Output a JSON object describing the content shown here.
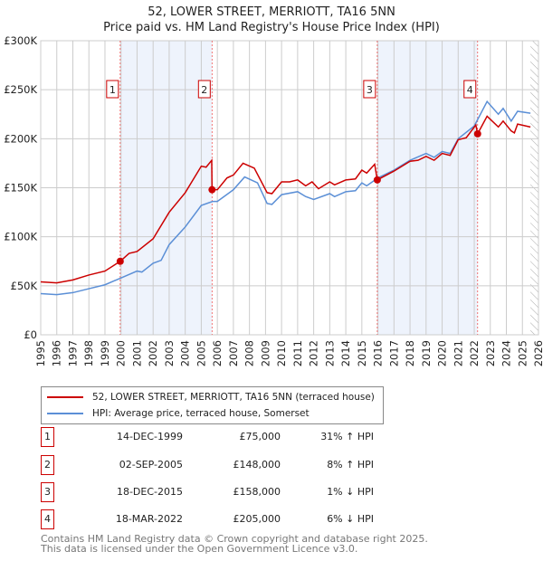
{
  "title": "52, LOWER STREET, MERRIOTT, TA16 5NN",
  "subtitle": "Price paid vs. HM Land Registry's House Price Index (HPI)",
  "chart_data": {
    "type": "line",
    "xlim": [
      1995,
      2026
    ],
    "ylim": [
      0,
      300000
    ],
    "y_ticks": [
      {
        "v": 0,
        "label": "£0"
      },
      {
        "v": 50000,
        "label": "£50K"
      },
      {
        "v": 100000,
        "label": "£100K"
      },
      {
        "v": 150000,
        "label": "£150K"
      },
      {
        "v": 200000,
        "label": "£200K"
      },
      {
        "v": 250000,
        "label": "£250K"
      },
      {
        "v": 300000,
        "label": "£300K"
      }
    ],
    "x_ticks": [
      "1995",
      "1996",
      "1997",
      "1998",
      "1999",
      "2000",
      "2001",
      "2002",
      "2003",
      "2004",
      "2005",
      "2006",
      "2007",
      "2008",
      "2009",
      "2010",
      "2011",
      "2012",
      "2013",
      "2014",
      "2015",
      "2016",
      "2017",
      "2018",
      "2019",
      "2020",
      "2021",
      "2022",
      "2023",
      "2024",
      "2025",
      "2026"
    ],
    "shaded_ranges": [
      [
        1999.95,
        2005.67
      ],
      [
        2015.96,
        2022.21
      ]
    ],
    "hatched_from": 2025.5,
    "series": [
      {
        "name": "52, LOWER STREET, MERRIOTT, TA16 5NN (terraced house)",
        "color": "#cc0000",
        "points": [
          [
            1995,
            54000
          ],
          [
            1996,
            53000
          ],
          [
            1997,
            56000
          ],
          [
            1998,
            61000
          ],
          [
            1999,
            65000
          ],
          [
            1999.95,
            75000
          ],
          [
            2000.5,
            83000
          ],
          [
            2001,
            85000
          ],
          [
            2002,
            98000
          ],
          [
            2003,
            125000
          ],
          [
            2004,
            145000
          ],
          [
            2005,
            172000
          ],
          [
            2005.3,
            171000
          ],
          [
            2005.65,
            178000
          ],
          [
            2005.67,
            148000
          ],
          [
            2006,
            148000
          ],
          [
            2006.6,
            160000
          ],
          [
            2007,
            163000
          ],
          [
            2007.6,
            175000
          ],
          [
            2008.3,
            170000
          ],
          [
            2009.1,
            145000
          ],
          [
            2009.4,
            144000
          ],
          [
            2010,
            156000
          ],
          [
            2010.5,
            156000
          ],
          [
            2011,
            158000
          ],
          [
            2011.5,
            152000
          ],
          [
            2011.9,
            156000
          ],
          [
            2012.3,
            149000
          ],
          [
            2013,
            156000
          ],
          [
            2013.3,
            153000
          ],
          [
            2014,
            158000
          ],
          [
            2014.6,
            159000
          ],
          [
            2015,
            168000
          ],
          [
            2015.3,
            165000
          ],
          [
            2015.8,
            174000
          ],
          [
            2015.96,
            158000
          ],
          [
            2017,
            167000
          ],
          [
            2018,
            177000
          ],
          [
            2018.5,
            178000
          ],
          [
            2019,
            182000
          ],
          [
            2019.5,
            178000
          ],
          [
            2020,
            185000
          ],
          [
            2020.5,
            183000
          ],
          [
            2021,
            199000
          ],
          [
            2021.5,
            201000
          ],
          [
            2022.1,
            214000
          ],
          [
            2022.21,
            205000
          ],
          [
            2022.8,
            223000
          ],
          [
            2023.5,
            212000
          ],
          [
            2023.8,
            218000
          ],
          [
            2024.3,
            208000
          ],
          [
            2024.5,
            206000
          ],
          [
            2024.7,
            215000
          ],
          [
            2025.5,
            212000
          ]
        ]
      },
      {
        "name": "HPI: Average price, terraced house, Somerset",
        "color": "#5b8fd6",
        "points": [
          [
            1995,
            42000
          ],
          [
            1996,
            41000
          ],
          [
            1997,
            43000
          ],
          [
            1998,
            47000
          ],
          [
            1999,
            51000
          ],
          [
            2000,
            58000
          ],
          [
            2001,
            65000
          ],
          [
            2001.3,
            64000
          ],
          [
            2002,
            73000
          ],
          [
            2002.5,
            76000
          ],
          [
            2003,
            92000
          ],
          [
            2004,
            110000
          ],
          [
            2005,
            132000
          ],
          [
            2005.7,
            136000
          ],
          [
            2006,
            136000
          ],
          [
            2007,
            148000
          ],
          [
            2007.7,
            161000
          ],
          [
            2008.5,
            155000
          ],
          [
            2009.1,
            134000
          ],
          [
            2009.4,
            133000
          ],
          [
            2010,
            143000
          ],
          [
            2011,
            146000
          ],
          [
            2011.5,
            141000
          ],
          [
            2012,
            138000
          ],
          [
            2013,
            144000
          ],
          [
            2013.3,
            141000
          ],
          [
            2014,
            146000
          ],
          [
            2014.6,
            147000
          ],
          [
            2015,
            155000
          ],
          [
            2015.3,
            152000
          ],
          [
            2016,
            160000
          ],
          [
            2017,
            168000
          ],
          [
            2018,
            178000
          ],
          [
            2019,
            185000
          ],
          [
            2019.5,
            181000
          ],
          [
            2020,
            187000
          ],
          [
            2020.5,
            185000
          ],
          [
            2021,
            200000
          ],
          [
            2022,
            213000
          ],
          [
            2022.8,
            238000
          ],
          [
            2023.5,
            225000
          ],
          [
            2023.8,
            231000
          ],
          [
            2024.3,
            218000
          ],
          [
            2024.7,
            228000
          ],
          [
            2025.5,
            226000
          ]
        ]
      }
    ],
    "sales": [
      {
        "n": "1",
        "x": 1999.95,
        "y": 75000
      },
      {
        "n": "2",
        "x": 2005.67,
        "y": 148000
      },
      {
        "n": "3",
        "x": 2015.96,
        "y": 158000
      },
      {
        "n": "4",
        "x": 2022.21,
        "y": 205000
      }
    ]
  },
  "legend": {
    "property": "52, LOWER STREET, MERRIOTT, TA16 5NN (terraced house)",
    "hpi": "HPI: Average price, terraced house, Somerset"
  },
  "table": [
    {
      "n": "1",
      "date": "14-DEC-1999",
      "price": "£75,000",
      "hpi": "31% ↑ HPI"
    },
    {
      "n": "2",
      "date": "02-SEP-2005",
      "price": "£148,000",
      "hpi": "8% ↑ HPI"
    },
    {
      "n": "3",
      "date": "18-DEC-2015",
      "price": "£158,000",
      "hpi": "1% ↓ HPI"
    },
    {
      "n": "4",
      "date": "18-MAR-2022",
      "price": "£205,000",
      "hpi": "6% ↓ HPI"
    }
  ],
  "footer": {
    "line1": "Contains HM Land Registry data © Crown copyright and database right 2025.",
    "line2": "This data is licensed under the Open Government Licence v3.0."
  }
}
